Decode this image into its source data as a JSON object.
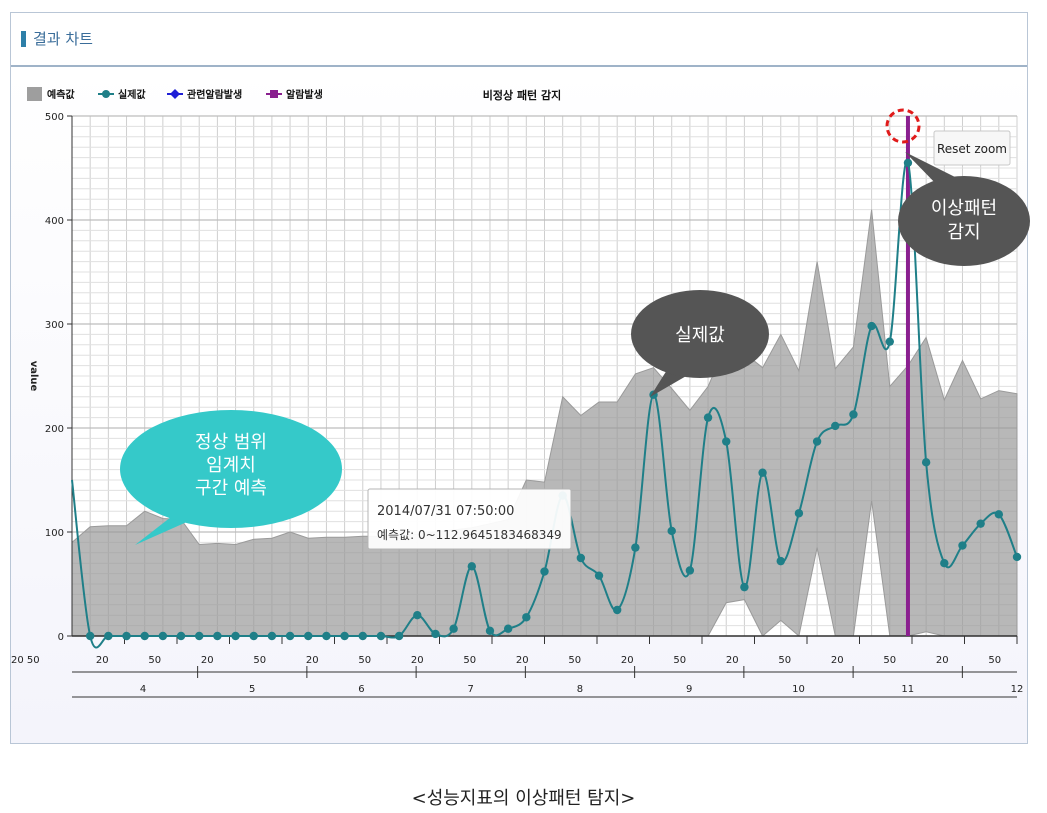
{
  "panel": {
    "title": "결과 차트"
  },
  "chart_data": {
    "type": "area",
    "title": "비정상 패턴 감지",
    "ylabel": "value",
    "ylim": [
      0,
      500
    ],
    "yticks": [
      0,
      100,
      200,
      300,
      400,
      500
    ],
    "legend_position": "top-left",
    "grid": true,
    "legend": [
      {
        "name": "예측값",
        "color": "#9e9e9e",
        "marker": "square"
      },
      {
        "name": "실제값",
        "color": "#1f7f88",
        "marker": "circle-line"
      },
      {
        "name": "관련알람발생",
        "color": "#1f1fd6",
        "marker": "diamond-line"
      },
      {
        "name": "알람발생",
        "color": "#8a1f8f",
        "marker": "square-line"
      }
    ],
    "x_minor_labels": [
      "20",
      "50",
      "20",
      "50",
      "20",
      "50",
      "20",
      "50",
      "20",
      "50",
      "20",
      "50",
      "20",
      "50",
      "20",
      "50",
      "20",
      "50"
    ],
    "x_first_label": "20  50",
    "x_major_labels": [
      "4",
      "5",
      "6",
      "7",
      "8",
      "9",
      "10",
      "11",
      "12"
    ],
    "series": [
      {
        "name": "실제값",
        "color": "#1f7f88",
        "values": [
          150,
          0,
          0,
          0,
          0,
          0,
          0,
          0,
          0,
          0,
          0,
          0,
          0,
          0,
          0,
          0,
          0,
          0,
          0,
          20,
          2,
          7,
          67,
          5,
          7,
          18,
          62,
          135,
          75,
          58,
          25,
          85,
          232,
          101,
          63,
          210,
          187,
          47,
          157,
          72,
          118,
          187,
          202,
          213,
          298,
          283,
          455,
          167,
          70,
          87,
          108,
          117,
          76
        ]
      },
      {
        "name": "예측값",
        "color": "#9e9e9e",
        "upper": [
          90,
          105,
          106,
          106,
          120,
          113,
          112,
          88,
          89,
          88,
          93,
          94,
          100,
          94,
          95,
          95,
          96,
          96,
          97,
          98,
          100,
          102,
          104,
          108,
          112,
          150,
          148,
          230,
          212,
          225,
          225,
          252,
          258,
          238,
          217,
          240,
          280,
          272,
          258,
          290,
          255,
          360,
          257,
          278,
          410,
          240,
          260,
          287,
          227,
          265,
          228,
          236,
          233
        ],
        "lower": [
          0,
          0,
          0,
          0,
          0,
          0,
          0,
          0,
          0,
          0,
          0,
          0,
          0,
          0,
          0,
          0,
          0,
          0,
          0,
          0,
          0,
          0,
          0,
          0,
          0,
          0,
          0,
          0,
          0,
          0,
          0,
          0,
          0,
          0,
          0,
          0,
          32,
          35,
          0,
          15,
          0,
          85,
          0,
          0,
          130,
          0,
          0,
          4,
          0,
          0,
          0,
          0,
          0
        ]
      }
    ],
    "alarm_index": 46,
    "tooltip": {
      "time": "2014/07/31 07:50:00",
      "text": "예측값: 0~112.9645183468349"
    },
    "reset_zoom_label": "Reset zoom",
    "callouts": [
      {
        "text": [
          "정상 범위",
          "임계치",
          "구간 예측"
        ],
        "color": "#35c9c9"
      },
      {
        "text": [
          "실제값"
        ],
        "color": "#555555"
      },
      {
        "text": [
          "이상패턴",
          "감지"
        ],
        "color": "#555555"
      }
    ]
  },
  "caption": "<성능지표의 이상패턴 탐지>"
}
